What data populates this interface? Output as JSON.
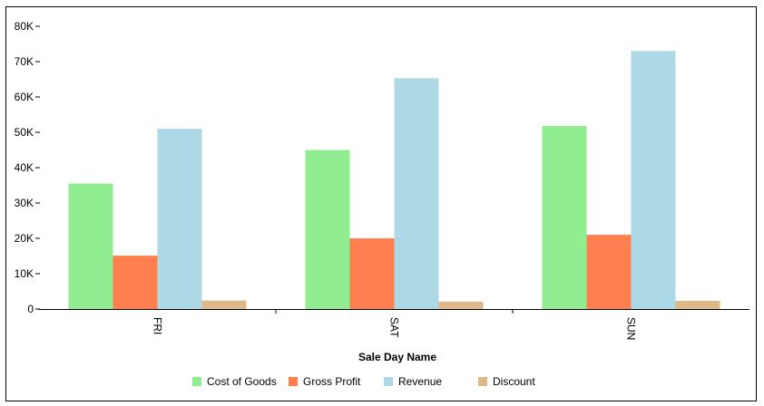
{
  "chart_data": {
    "type": "bar",
    "title": "",
    "xlabel": "Sale Day Name",
    "ylabel": "",
    "categories": [
      "FRI",
      "SAT",
      "SUN"
    ],
    "ylim": [
      0,
      80000
    ],
    "yticks": [
      {
        "value": 0,
        "label": "0"
      },
      {
        "value": 10000,
        "label": "10K"
      },
      {
        "value": 20000,
        "label": "20K"
      },
      {
        "value": 30000,
        "label": "30K"
      },
      {
        "value": 40000,
        "label": "40K"
      },
      {
        "value": 50000,
        "label": "50K"
      },
      {
        "value": 60000,
        "label": "60K"
      },
      {
        "value": 70000,
        "label": "70K"
      },
      {
        "value": 80000,
        "label": "80K"
      }
    ],
    "series": [
      {
        "name": "Cost of Goods",
        "color": "#90ee90",
        "values": [
          35500,
          45000,
          51800
        ]
      },
      {
        "name": "Gross Profit",
        "color": "#ff7f50",
        "values": [
          15100,
          20000,
          21000
        ]
      },
      {
        "name": "Revenue",
        "color": "#add8e6",
        "values": [
          51000,
          65300,
          73000
        ]
      },
      {
        "name": "Discount",
        "color": "#deb887",
        "values": [
          2400,
          2100,
          2300
        ]
      }
    ],
    "grid": false,
    "legend_position": "bottom"
  }
}
